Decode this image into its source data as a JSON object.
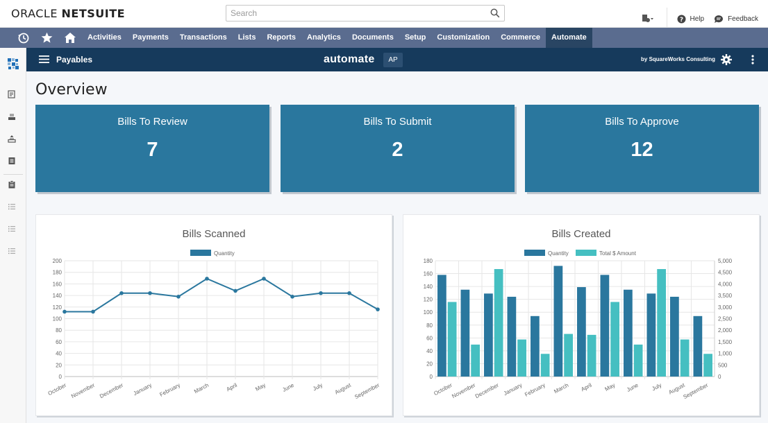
{
  "header": {
    "logo_light": "ORACLE ",
    "logo_bold": "NETSUITE",
    "search_placeholder": "Search",
    "help": "Help",
    "feedback": "Feedback"
  },
  "nav": {
    "items": [
      "Activities",
      "Payments",
      "Transactions",
      "Lists",
      "Reports",
      "Analytics",
      "Documents",
      "Setup",
      "Customization",
      "Commerce",
      "Automate"
    ],
    "active": "Automate"
  },
  "appbar": {
    "title": "Payables",
    "brand": "automate",
    "badge": "AP",
    "byline": "by SquareWorks Consulting"
  },
  "main": {
    "heading": "Overview",
    "cards": [
      {
        "label": "Bills To Review",
        "value": "7"
      },
      {
        "label": "Bills To Submit",
        "value": "2"
      },
      {
        "label": "Bills To Approve",
        "value": "12"
      }
    ]
  },
  "colors": {
    "accent": "#2a779e",
    "navbar": "#5a6c8f",
    "appbar": "#163a5c",
    "series1": "#2a779e",
    "series2": "#45bfc1"
  },
  "chart_data": [
    {
      "type": "line",
      "title": "Bills Scanned",
      "categories": [
        "October",
        "November",
        "December",
        "January",
        "February",
        "March",
        "April",
        "May",
        "June",
        "July",
        "August",
        "September"
      ],
      "series": [
        {
          "name": "Quantity",
          "values": [
            112,
            112,
            144,
            144,
            138,
            169,
            148,
            169,
            138,
            144,
            144,
            116
          ]
        }
      ],
      "ylim": [
        0,
        200
      ],
      "yticks": [
        0,
        20,
        40,
        60,
        80,
        100,
        120,
        140,
        160,
        180,
        200
      ],
      "legend": "top"
    },
    {
      "type": "bar",
      "title": "Bills Created",
      "categories": [
        "October",
        "November",
        "December",
        "January",
        "February",
        "March",
        "April",
        "May",
        "June",
        "July",
        "August",
        "September"
      ],
      "series": [
        {
          "name": "Quantity",
          "axis": "left",
          "values": [
            158,
            135,
            129,
            124,
            94,
            172,
            139,
            158,
            135,
            129,
            124,
            94
          ]
        },
        {
          "name": "Total $ Amount",
          "axis": "right",
          "values": [
            3220,
            1380,
            4640,
            1600,
            980,
            1840,
            1800,
            3220,
            1380,
            4640,
            1600,
            980
          ]
        }
      ],
      "ylim": [
        0,
        180
      ],
      "yticks": [
        0,
        20,
        40,
        60,
        80,
        100,
        120,
        140,
        160,
        180
      ],
      "y2lim": [
        0,
        5000
      ],
      "y2ticks": [
        "0",
        "500",
        "1,000",
        "1,500",
        "2,000",
        "2,500",
        "3,000",
        "3,500",
        "4,000",
        "4,500",
        "5,000"
      ],
      "legend": "top"
    }
  ]
}
